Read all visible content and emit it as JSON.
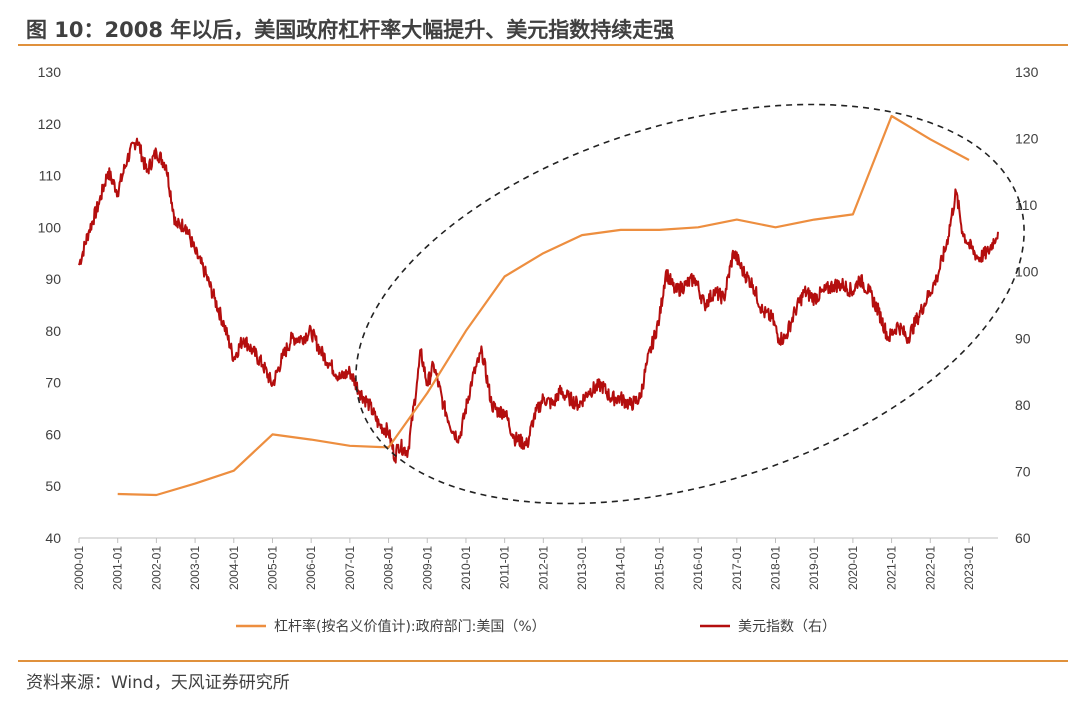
{
  "title": "图 10：2008 年以后，美国政府杠杆率大幅提升、美元指数持续走强",
  "source": "资料来源：Wind，天风证券研究所",
  "colors": {
    "accent": "#e0913c",
    "leverage": "#ed8e3f",
    "usd": "#b40e0e"
  },
  "chart_data": {
    "type": "line",
    "title": "",
    "xlabel": "",
    "ylabel_left": "",
    "ylabel_right": "",
    "x_ticks": [
      "2000-01",
      "2001-01",
      "2002-01",
      "2003-01",
      "2004-01",
      "2005-01",
      "2006-01",
      "2007-01",
      "2008-01",
      "2009-01",
      "2010-01",
      "2011-01",
      "2012-01",
      "2013-01",
      "2014-01",
      "2015-01",
      "2016-01",
      "2017-01",
      "2018-01",
      "2019-01",
      "2020-01",
      "2021-01",
      "2022-01",
      "2023-01"
    ],
    "x_range": [
      "2000-01",
      "2023-10"
    ],
    "y_left": {
      "min": 40,
      "max": 130,
      "ticks": [
        40,
        50,
        60,
        70,
        80,
        90,
        100,
        110,
        120,
        130
      ]
    },
    "y_right": {
      "min": 60,
      "max": 130,
      "ticks": [
        60,
        70,
        80,
        90,
        100,
        110,
        120,
        130
      ]
    },
    "legend": {
      "position": "bottom"
    },
    "series": [
      {
        "name": "杠杆率(按名义价值计):政府部门:美国（%）",
        "axis": "left",
        "x": [
          "2001-01",
          "2002-01",
          "2003-01",
          "2004-01",
          "2005-01",
          "2006-01",
          "2007-01",
          "2008-01",
          "2009-01",
          "2010-01",
          "2011-01",
          "2012-01",
          "2013-01",
          "2014-01",
          "2015-01",
          "2016-01",
          "2017-01",
          "2018-01",
          "2019-01",
          "2020-01",
          "2021-01",
          "2022-01",
          "2023-01"
        ],
        "values": [
          48.5,
          48.3,
          50.5,
          53,
          60,
          59,
          57.8,
          57.5,
          68,
          80,
          90.5,
          95,
          98.5,
          99.5,
          99.5,
          100,
          101.5,
          100,
          101.5,
          102.5,
          121.5,
          117,
          113
        ]
      },
      {
        "name": "美元指数（右）",
        "axis": "right",
        "x": [
          "2000-01",
          "2000-04",
          "2000-07",
          "2000-10",
          "2001-01",
          "2001-04",
          "2001-07",
          "2001-10",
          "2002-01",
          "2002-04",
          "2002-07",
          "2002-10",
          "2003-01",
          "2003-04",
          "2003-07",
          "2003-10",
          "2004-01",
          "2004-04",
          "2004-07",
          "2004-10",
          "2005-01",
          "2005-04",
          "2005-07",
          "2005-10",
          "2006-01",
          "2006-04",
          "2006-07",
          "2006-10",
          "2007-01",
          "2007-04",
          "2007-07",
          "2007-10",
          "2008-01",
          "2008-03",
          "2008-04",
          "2008-07",
          "2008-10",
          "2008-11",
          "2009-01",
          "2009-03",
          "2009-06",
          "2009-09",
          "2009-11",
          "2010-03",
          "2010-06",
          "2010-09",
          "2010-11",
          "2011-01",
          "2011-04",
          "2011-08",
          "2011-10",
          "2012-01",
          "2012-04",
          "2012-06",
          "2012-09",
          "2012-12",
          "2013-03",
          "2013-07",
          "2013-10",
          "2014-01",
          "2014-04",
          "2014-07",
          "2014-09",
          "2015-01",
          "2015-03",
          "2015-06",
          "2015-09",
          "2015-12",
          "2016-03",
          "2016-06",
          "2016-09",
          "2016-12",
          "2017-03",
          "2017-06",
          "2017-09",
          "2017-12",
          "2018-02",
          "2018-04",
          "2018-07",
          "2018-10",
          "2019-01",
          "2019-04",
          "2019-07",
          "2019-10",
          "2020-01",
          "2020-03",
          "2020-06",
          "2020-09",
          "2020-12",
          "2021-03",
          "2021-06",
          "2021-09",
          "2021-12",
          "2022-03",
          "2022-06",
          "2022-09",
          "2022-11",
          "2023-01",
          "2023-04",
          "2023-07",
          "2023-10"
        ],
        "values": [
          101,
          106,
          110,
          115,
          112,
          117,
          120,
          115,
          118,
          116,
          107,
          107,
          103,
          100,
          96,
          92,
          87,
          90,
          88,
          86,
          83,
          87,
          90,
          90,
          91,
          88,
          86,
          84,
          85,
          82,
          80,
          77,
          76,
          72,
          74,
          73,
          84,
          88,
          83,
          86,
          80,
          76,
          75,
          84,
          88,
          80,
          79,
          79,
          75,
          74,
          78,
          81,
          80,
          82,
          81,
          80,
          82,
          83,
          81,
          81,
          80,
          81,
          86,
          93,
          100,
          97,
          98,
          99,
          95,
          97,
          96,
          103,
          100,
          98,
          94,
          93,
          90,
          90,
          94,
          97,
          96,
          97,
          98,
          98,
          97,
          99,
          97,
          94,
          90,
          92,
          90,
          93,
          96,
          99,
          104,
          112,
          106,
          104,
          102,
          103,
          106
        ]
      }
    ],
    "annotation": "dashed ellipse"
  }
}
